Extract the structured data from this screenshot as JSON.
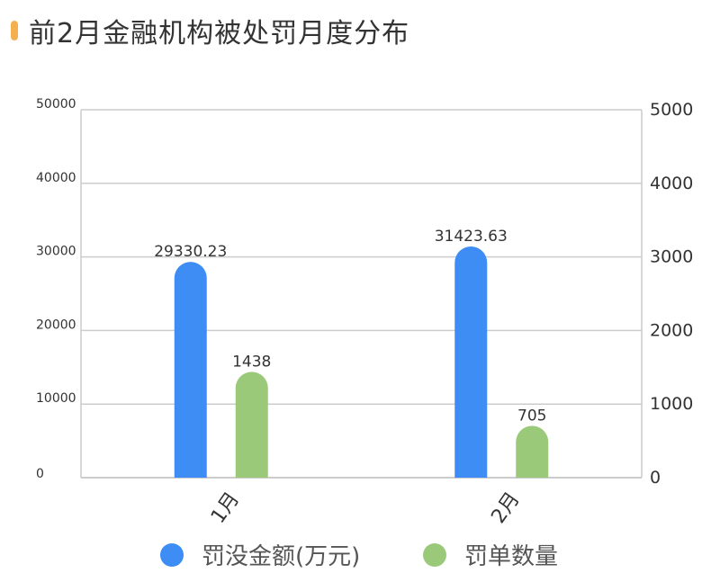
{
  "title": "前2月金融机构被处罚月度分布",
  "colors": {
    "title_mark": "#f4b04f",
    "amount": "#3d8df5",
    "count": "#9bc97a",
    "grid": "#cccccc"
  },
  "chart_data": {
    "type": "bar",
    "title": "前2月金融机构被处罚月度分布",
    "categories": [
      "1月",
      "2月"
    ],
    "series": [
      {
        "name": "罚没金额(万元)",
        "axis": "left",
        "values": [
          29330.23,
          31423.63
        ],
        "labels": [
          "29330.23",
          "31423.63"
        ]
      },
      {
        "name": "罚单数量",
        "axis": "right",
        "values": [
          1438,
          705
        ],
        "labels": [
          "1438",
          "705"
        ]
      }
    ],
    "y_left": {
      "ylim": [
        0,
        50000
      ],
      "ticks": [
        "0",
        "10000",
        "20000",
        "30000",
        "40000",
        "50000"
      ]
    },
    "y_right": {
      "ylim": [
        0,
        5000
      ],
      "ticks": [
        "0",
        "1000",
        "2000",
        "3000",
        "4000",
        "5000"
      ]
    },
    "grid": true,
    "legend": "bottom"
  }
}
